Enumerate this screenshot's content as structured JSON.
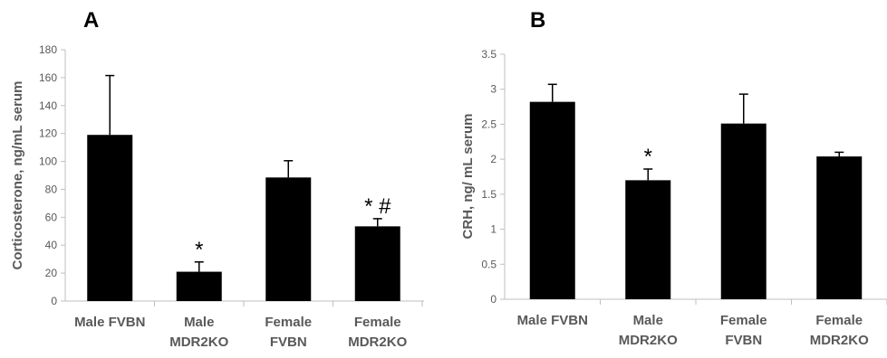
{
  "chart_data": [
    {
      "type": "bar",
      "panel": "A",
      "ylabel": "Corticosterone, ng/mL serum",
      "ylim": [
        0,
        180
      ],
      "yticks": [
        "0",
        "20",
        "40",
        "60",
        "80",
        "100",
        "120",
        "140",
        "160",
        "180"
      ],
      "categories": [
        [
          "Male FVBN"
        ],
        [
          "Male",
          "MDR2KO"
        ],
        [
          "Female",
          "FVBN"
        ],
        [
          "Female",
          "MDR2KO"
        ]
      ],
      "values": [
        119,
        21,
        88.5,
        53.5
      ],
      "error_plus": [
        42.5,
        7,
        12,
        5.5
      ],
      "annotations": [
        "",
        "*",
        "",
        "* #"
      ],
      "bar_color": "#000000",
      "grid": false
    },
    {
      "type": "bar",
      "panel": "B",
      "ylabel": "CRH, ng/ mL serum",
      "ylim": [
        0,
        3.5
      ],
      "yticks": [
        "0",
        "0.5",
        "1",
        "1.5",
        "2",
        "2.5",
        "3",
        "3.5"
      ],
      "categories": [
        [
          "Male FVBN"
        ],
        [
          "Male",
          "MDR2KO"
        ],
        [
          "Female",
          "FVBN"
        ],
        [
          "Female",
          "MDR2KO"
        ]
      ],
      "values": [
        2.82,
        1.7,
        2.51,
        2.04
      ],
      "error_plus": [
        0.25,
        0.16,
        0.42,
        0.06
      ],
      "annotations": [
        "",
        "*",
        "",
        ""
      ],
      "bar_color": "#000000",
      "grid": false
    }
  ]
}
